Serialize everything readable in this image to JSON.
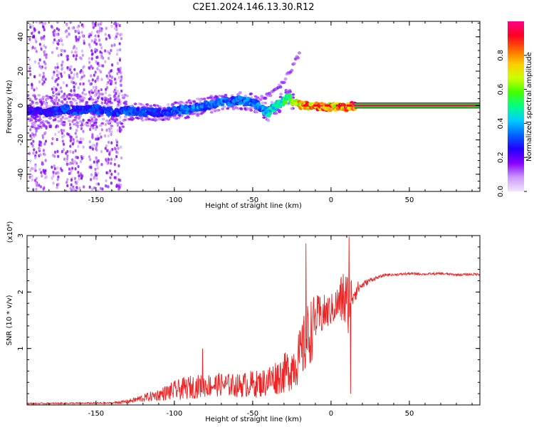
{
  "title": "C2E1.2024.146.13.30.R12",
  "chart_data": [
    {
      "type": "heatmap",
      "xlabel": "Height of straight line (km)",
      "ylabel": "Frequency (Hz)",
      "xlim": [
        -194,
        95
      ],
      "ylim": [
        -50,
        49
      ],
      "x_ticks": [
        -150,
        -100,
        -50,
        0,
        50
      ],
      "y_ticks": [
        -40,
        -20,
        0,
        20,
        40
      ],
      "colorbar": {
        "label": "Normalized spectral amplitude",
        "range": [
          0,
          1
        ],
        "ticks": [
          0.0,
          0.2,
          0.4,
          0.6,
          0.8
        ],
        "colors": [
          "#f2e6ff",
          "#cc99ff",
          "#8800ff",
          "#2200ff",
          "#0066ff",
          "#00ccff",
          "#00ff88",
          "#44ff00",
          "#ccff00",
          "#ffcc00",
          "#ff6600",
          "#ff0022",
          "#ff0088"
        ]
      },
      "ridge": {
        "x": [
          -194,
          -180,
          -170,
          -160,
          -150,
          -140,
          -130,
          -120,
          -110,
          -100,
          -90,
          -80,
          -70,
          -60,
          -50,
          -45,
          -40,
          -35,
          -30,
          -27,
          -25,
          -22,
          -20,
          -15,
          -10,
          -5,
          0,
          5,
          10,
          15,
          20,
          40,
          60,
          80,
          95
        ],
        "y": [
          -3,
          -4,
          -2,
          -3,
          -2,
          -4,
          -3,
          -4,
          -4,
          -3,
          -2,
          0,
          2,
          3,
          2,
          -1,
          -4,
          0,
          3,
          6,
          2,
          2,
          0,
          0,
          0,
          -1,
          -1,
          -1,
          -1,
          0,
          0,
          0,
          0,
          0,
          0
        ],
        "amplitude": [
          0.25,
          0.25,
          0.3,
          0.3,
          0.3,
          0.3,
          0.32,
          0.3,
          0.3,
          0.32,
          0.35,
          0.35,
          0.35,
          0.35,
          0.35,
          0.35,
          0.45,
          0.45,
          0.5,
          0.55,
          0.6,
          0.65,
          0.75,
          0.8,
          0.85,
          0.85,
          0.8,
          0.8,
          0.85,
          0.9,
          0.95,
          0.95,
          0.95,
          0.95,
          0.95
        ]
      },
      "upper_branch": {
        "x": [
          -45,
          -40,
          -35,
          -30,
          -28,
          -25,
          -20
        ],
        "y": [
          5,
          6,
          10,
          14,
          18,
          22,
          30
        ]
      }
    },
    {
      "type": "line",
      "xlabel": "Height of straight line (km)",
      "ylabel": "SNR (10 * v/v)",
      "y_multiplier": "(x10⁴)",
      "xlim": [
        -194,
        95
      ],
      "ylim": [
        0,
        3
      ],
      "x_ticks": [
        -150,
        -100,
        -50,
        0,
        50
      ],
      "y_ticks": [
        1,
        2,
        3
      ],
      "series": [
        {
          "color": "#ee2222",
          "envelope_x": [
            -194,
            -140,
            -130,
            -120,
            -110,
            -100,
            -90,
            -80,
            -70,
            -60,
            -50,
            -45,
            -40,
            -35,
            -30,
            -25,
            -20,
            -17,
            -15,
            -12,
            -10,
            -5,
            0,
            5,
            8,
            10,
            12,
            15,
            18,
            20,
            25,
            30,
            35,
            40,
            50,
            60,
            70,
            80,
            95
          ],
          "base": [
            0.02,
            0.03,
            0.05,
            0.1,
            0.15,
            0.2,
            0.25,
            0.28,
            0.3,
            0.28,
            0.3,
            0.3,
            0.35,
            0.4,
            0.45,
            0.55,
            0.7,
            0.9,
            1.0,
            1.2,
            1.4,
            1.5,
            1.6,
            1.7,
            1.75,
            1.5,
            1.8,
            1.95,
            2.05,
            2.1,
            2.2,
            2.25,
            2.3,
            2.3,
            2.32,
            2.31,
            2.32,
            2.3,
            2.31
          ],
          "noise": [
            0.02,
            0.02,
            0.05,
            0.1,
            0.15,
            0.25,
            0.3,
            0.3,
            0.3,
            0.3,
            0.35,
            0.35,
            0.4,
            0.45,
            0.5,
            0.6,
            0.7,
            0.8,
            0.9,
            0.8,
            0.6,
            0.5,
            0.4,
            0.5,
            0.8,
            1.0,
            0.6,
            0.3,
            0.15,
            0.1,
            0.06,
            0.04,
            0.03,
            0.03,
            0.03,
            0.03,
            0.03,
            0.03,
            0.03
          ],
          "peaks": [
            {
              "x": -82,
              "y": 1.0
            },
            {
              "x": -16,
              "y": 2.86
            },
            {
              "x": 11.5,
              "y": 2.98
            },
            {
              "x": 12.5,
              "y": 0.2
            }
          ]
        }
      ]
    }
  ]
}
